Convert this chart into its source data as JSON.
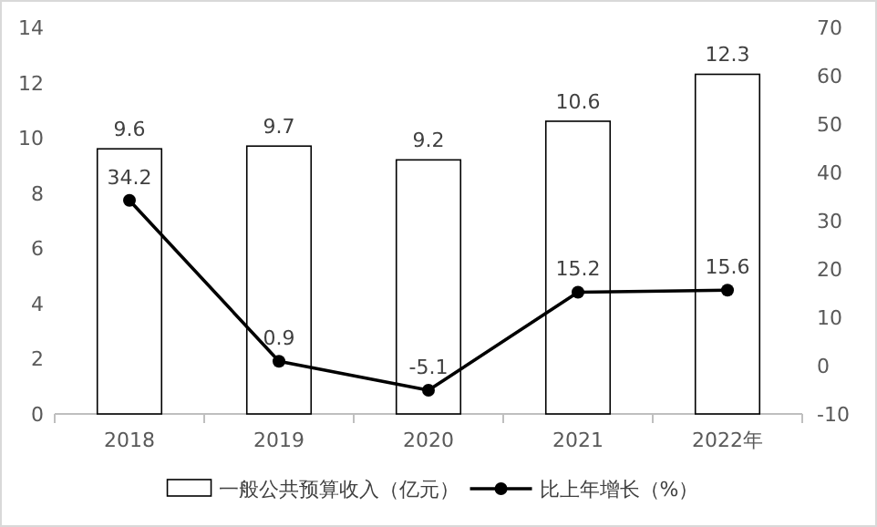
{
  "chart_data": {
    "type": "bar",
    "categories": [
      "2018",
      "2019",
      "2020",
      "2021",
      "2022年"
    ],
    "series": [
      {
        "name": "一般公共预算收入（亿元）",
        "color": "#ffffff",
        "values": [
          9.6,
          9.7,
          9.2,
          10.6,
          12.3
        ]
      },
      {
        "name": "比上年增长（%）",
        "type": "line",
        "axis": "y2",
        "color": "#000000",
        "values": [
          34.2,
          0.9,
          -5.1,
          15.2,
          15.6
        ]
      }
    ],
    "marker": "circle",
    "line_style": "solid",
    "ylim": [
      0,
      14
    ],
    "yticks": [
      0,
      2,
      4,
      6,
      8,
      10,
      12,
      14
    ],
    "y2lim": [
      -10,
      70
    ],
    "y2ticks": [
      -10,
      0,
      10,
      20,
      30,
      40,
      50,
      60,
      70
    ],
    "data_labels": true,
    "legend": "bottom",
    "grid": false
  }
}
